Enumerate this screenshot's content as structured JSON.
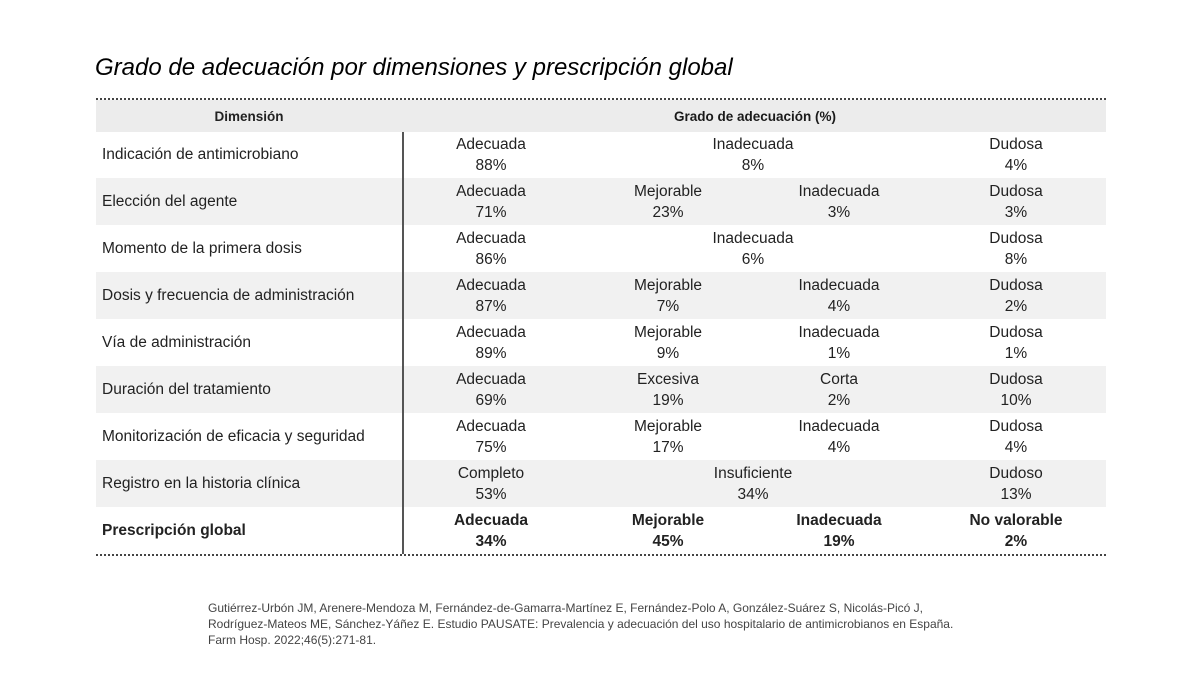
{
  "title": "Grado de adecuación por dimensiones y prescripción global",
  "table": {
    "header_dimension": "Dimensión",
    "header_grade": "Grado de adecuación (%)",
    "rows": [
      {
        "dimension": "Indicación de antimicrobiano",
        "a": {
          "label": "Adecuada",
          "value": "88%"
        },
        "mid": {
          "label": "Inadecuada",
          "value": "8%"
        },
        "d": {
          "label": "Dudosa",
          "value": "4%"
        }
      },
      {
        "dimension": "Elección del agente",
        "a": {
          "label": "Adecuada",
          "value": "71%"
        },
        "b": {
          "label": "Mejorable",
          "value": "23%"
        },
        "c": {
          "label": "Inadecuada",
          "value": "3%"
        },
        "d": {
          "label": "Dudosa",
          "value": "3%"
        }
      },
      {
        "dimension": "Momento de la primera dosis",
        "a": {
          "label": "Adecuada",
          "value": "86%"
        },
        "mid": {
          "label": "Inadecuada",
          "value": "6%"
        },
        "d": {
          "label": "Dudosa",
          "value": "8%"
        }
      },
      {
        "dimension": "Dosis y frecuencia de administración",
        "a": {
          "label": "Adecuada",
          "value": "87%"
        },
        "b": {
          "label": "Mejorable",
          "value": "7%"
        },
        "c": {
          "label": "Inadecuada",
          "value": "4%"
        },
        "d": {
          "label": "Dudosa",
          "value": "2%"
        }
      },
      {
        "dimension": "Vía de administración",
        "a": {
          "label": "Adecuada",
          "value": "89%"
        },
        "b": {
          "label": "Mejorable",
          "value": "9%"
        },
        "c": {
          "label": "Inadecuada",
          "value": "1%"
        },
        "d": {
          "label": "Dudosa",
          "value": "1%"
        }
      },
      {
        "dimension": "Duración del tratamiento",
        "a": {
          "label": "Adecuada",
          "value": "69%"
        },
        "b": {
          "label": "Excesiva",
          "value": "19%"
        },
        "c": {
          "label": "Corta",
          "value": "2%"
        },
        "d": {
          "label": "Dudosa",
          "value": "10%"
        }
      },
      {
        "dimension": "Monitorización de eficacia y seguridad",
        "a": {
          "label": "Adecuada",
          "value": "75%"
        },
        "b": {
          "label": "Mejorable",
          "value": "17%"
        },
        "c": {
          "label": "Inadecuada",
          "value": "4%"
        },
        "d": {
          "label": "Dudosa",
          "value": "4%"
        }
      },
      {
        "dimension": "Registro en la historia clínica",
        "a": {
          "label": "Completo",
          "value": "53%"
        },
        "mid": {
          "label": "Insuficiente",
          "value": "34%"
        },
        "d": {
          "label": "Dudoso",
          "value": "13%"
        }
      }
    ],
    "global": {
      "dimension": "Prescripción global",
      "a": {
        "label": "Adecuada",
        "value": "34%"
      },
      "b": {
        "label": "Mejorable",
        "value": "45%"
      },
      "c": {
        "label": "Inadecuada",
        "value": "19%"
      },
      "d": {
        "label": "No valorable",
        "value": "2%"
      }
    }
  },
  "citation": {
    "line1": "Gutiérrez-Urbón JM, Arenere-Mendoza M, Fernández-de-Gamarra-Martínez E, Fernández-Polo A, González-Suárez S, Nicolás-Picó J,",
    "line2": "Rodríguez-Mateos ME, Sánchez-Yáñez E. Estudio PAUSATE: Prevalencia y adecuación del uso hospitalario de antimicrobianos en España.",
    "line3": "Farm Hosp. 2022;46(5):271-81."
  }
}
